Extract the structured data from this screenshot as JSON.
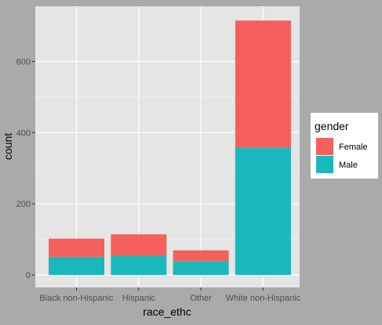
{
  "chart_data": {
    "type": "bar",
    "stacked": true,
    "categories": [
      "Black non-Hispanic",
      "Hispanic",
      "Other",
      "White non-Hispanic"
    ],
    "series": [
      {
        "name": "Male",
        "values": [
          51,
          53,
          39,
          357
        ],
        "color": "#19b8bc"
      },
      {
        "name": "Female",
        "values": [
          51,
          61,
          30,
          358
        ],
        "color": "#f5605c"
      }
    ],
    "xlabel": "race_ethc",
    "ylabel": "count",
    "ylim": [
      0,
      720
    ],
    "yticks": [
      0,
      200,
      400,
      600
    ],
    "grid": true,
    "legend": {
      "title": "gender",
      "placement": "right",
      "entries": [
        "Female",
        "Male"
      ]
    }
  },
  "colors": {
    "page_background": "#aaaaaa",
    "panel_background": "#e5e5e5",
    "gridline": "#ffffff",
    "legend_background": "#ffffff"
  }
}
